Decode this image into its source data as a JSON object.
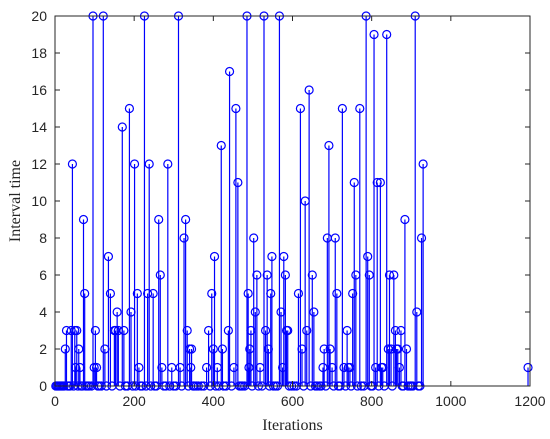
{
  "chart_data": {
    "type": "stem",
    "title": "",
    "xlabel": "Iterations",
    "ylabel": "Interval time",
    "xlim": [
      0,
      1200
    ],
    "ylim": [
      0,
      20
    ],
    "xticks": [
      0,
      200,
      400,
      600,
      800,
      1000,
      1200
    ],
    "yticks": [
      0,
      2,
      4,
      6,
      8,
      10,
      12,
      14,
      16,
      18,
      20
    ],
    "grid": false,
    "color": "#0000ff",
    "marker": "circle",
    "points": [
      [
        2,
        0
      ],
      [
        5,
        0
      ],
      [
        8,
        0
      ],
      [
        11,
        0
      ],
      [
        14,
        0
      ],
      [
        17,
        0
      ],
      [
        20,
        0
      ],
      [
        23,
        0
      ],
      [
        26,
        2
      ],
      [
        29,
        3
      ],
      [
        32,
        0
      ],
      [
        35,
        0
      ],
      [
        38,
        0
      ],
      [
        41,
        3
      ],
      [
        44,
        12
      ],
      [
        47,
        0
      ],
      [
        50,
        3
      ],
      [
        52,
        1
      ],
      [
        55,
        3
      ],
      [
        58,
        0
      ],
      [
        60,
        2
      ],
      [
        63,
        1
      ],
      [
        66,
        0
      ],
      [
        69,
        0
      ],
      [
        72,
        9
      ],
      [
        75,
        5
      ],
      [
        78,
        0
      ],
      [
        82,
        0
      ],
      [
        86,
        0
      ],
      [
        92,
        0
      ],
      [
        96,
        20
      ],
      [
        99,
        1
      ],
      [
        102,
        3
      ],
      [
        105,
        1
      ],
      [
        108,
        0
      ],
      [
        112,
        0
      ],
      [
        117,
        0
      ],
      [
        122,
        20
      ],
      [
        126,
        2
      ],
      [
        130,
        0
      ],
      [
        135,
        7
      ],
      [
        140,
        5
      ],
      [
        144,
        0
      ],
      [
        150,
        3
      ],
      [
        153,
        3
      ],
      [
        157,
        4
      ],
      [
        160,
        3
      ],
      [
        164,
        0
      ],
      [
        170,
        14
      ],
      [
        174,
        3
      ],
      [
        178,
        0
      ],
      [
        183,
        0
      ],
      [
        188,
        15
      ],
      [
        192,
        4
      ],
      [
        196,
        0
      ],
      [
        201,
        12
      ],
      [
        204,
        0
      ],
      [
        208,
        5
      ],
      [
        212,
        1
      ],
      [
        216,
        0
      ],
      [
        220,
        0
      ],
      [
        226,
        20
      ],
      [
        230,
        0
      ],
      [
        234,
        5
      ],
      [
        238,
        12
      ],
      [
        242,
        0
      ],
      [
        248,
        5
      ],
      [
        252,
        0
      ],
      [
        256,
        0
      ],
      [
        262,
        9
      ],
      [
        266,
        6
      ],
      [
        270,
        1
      ],
      [
        275,
        0
      ],
      [
        280,
        0
      ],
      [
        285,
        12
      ],
      [
        290,
        0
      ],
      [
        295,
        1
      ],
      [
        300,
        0
      ],
      [
        305,
        0
      ],
      [
        312,
        20
      ],
      [
        316,
        1
      ],
      [
        320,
        0
      ],
      [
        326,
        8
      ],
      [
        330,
        9
      ],
      [
        334,
        3
      ],
      [
        337,
        0
      ],
      [
        340,
        2
      ],
      [
        343,
        1
      ],
      [
        345,
        2
      ],
      [
        349,
        0
      ],
      [
        352,
        0
      ],
      [
        357,
        0
      ],
      [
        362,
        0
      ],
      [
        370,
        0
      ],
      [
        376,
        0
      ],
      [
        383,
        1
      ],
      [
        388,
        3
      ],
      [
        392,
        0
      ],
      [
        396,
        5
      ],
      [
        400,
        2
      ],
      [
        403,
        7
      ],
      [
        406,
        0
      ],
      [
        410,
        1
      ],
      [
        414,
        0
      ],
      [
        420,
        13
      ],
      [
        423,
        2
      ],
      [
        426,
        0
      ],
      [
        432,
        0
      ],
      [
        438,
        3
      ],
      [
        441,
        17
      ],
      [
        446,
        0
      ],
      [
        452,
        1
      ],
      [
        457,
        15
      ],
      [
        462,
        11
      ],
      [
        466,
        0
      ],
      [
        470,
        0
      ],
      [
        474,
        0
      ],
      [
        479,
        0
      ],
      [
        485,
        20
      ],
      [
        488,
        5
      ],
      [
        490,
        1
      ],
      [
        492,
        2
      ],
      [
        495,
        3
      ],
      [
        498,
        0
      ],
      [
        502,
        8
      ],
      [
        506,
        4
      ],
      [
        510,
        6
      ],
      [
        514,
        0
      ],
      [
        518,
        1
      ],
      [
        523,
        0
      ],
      [
        528,
        20
      ],
      [
        532,
        3
      ],
      [
        536,
        6
      ],
      [
        539,
        2
      ],
      [
        542,
        0
      ],
      [
        545,
        5
      ],
      [
        548,
        7
      ],
      [
        552,
        0
      ],
      [
        557,
        0
      ],
      [
        562,
        0
      ],
      [
        567,
        20
      ],
      [
        571,
        4
      ],
      [
        575,
        1
      ],
      [
        578,
        7
      ],
      [
        582,
        6
      ],
      [
        585,
        3
      ],
      [
        588,
        3
      ],
      [
        592,
        0
      ],
      [
        598,
        0
      ],
      [
        604,
        0
      ],
      [
        610,
        0
      ],
      [
        615,
        5
      ],
      [
        620,
        15
      ],
      [
        624,
        2
      ],
      [
        628,
        0
      ],
      [
        632,
        10
      ],
      [
        636,
        3
      ],
      [
        642,
        16
      ],
      [
        646,
        0
      ],
      [
        650,
        6
      ],
      [
        654,
        4
      ],
      [
        658,
        0
      ],
      [
        662,
        0
      ],
      [
        668,
        0
      ],
      [
        672,
        0
      ],
      [
        677,
        1
      ],
      [
        680,
        2
      ],
      [
        684,
        0
      ],
      [
        688,
        8
      ],
      [
        692,
        13
      ],
      [
        695,
        2
      ],
      [
        700,
        1
      ],
      [
        704,
        0
      ],
      [
        708,
        8
      ],
      [
        712,
        5
      ],
      [
        716,
        0
      ],
      [
        720,
        0
      ],
      [
        726,
        15
      ],
      [
        730,
        1
      ],
      [
        734,
        0
      ],
      [
        738,
        3
      ],
      [
        741,
        1
      ],
      [
        745,
        1
      ],
      [
        748,
        0
      ],
      [
        752,
        5
      ],
      [
        756,
        11
      ],
      [
        760,
        6
      ],
      [
        764,
        0
      ],
      [
        770,
        15
      ],
      [
        774,
        0
      ],
      [
        780,
        0
      ],
      [
        786,
        20
      ],
      [
        790,
        7
      ],
      [
        794,
        6
      ],
      [
        798,
        0
      ],
      [
        802,
        0
      ],
      [
        806,
        19
      ],
      [
        810,
        1
      ],
      [
        814,
        11
      ],
      [
        818,
        0
      ],
      [
        822,
        11
      ],
      [
        825,
        1
      ],
      [
        828,
        1
      ],
      [
        832,
        0
      ],
      [
        838,
        19
      ],
      [
        842,
        2
      ],
      [
        845,
        6
      ],
      [
        849,
        2
      ],
      [
        852,
        0
      ],
      [
        856,
        6
      ],
      [
        860,
        3
      ],
      [
        863,
        2
      ],
      [
        866,
        2
      ],
      [
        870,
        1
      ],
      [
        874,
        3
      ],
      [
        877,
        0
      ],
      [
        880,
        0
      ],
      [
        884,
        9
      ],
      [
        888,
        2
      ],
      [
        892,
        0
      ],
      [
        897,
        0
      ],
      [
        900,
        0
      ],
      [
        904,
        0
      ],
      [
        910,
        20
      ],
      [
        914,
        4
      ],
      [
        918,
        0
      ],
      [
        922,
        0
      ],
      [
        926,
        8
      ],
      [
        930,
        12
      ],
      [
        1195,
        1
      ]
    ]
  }
}
